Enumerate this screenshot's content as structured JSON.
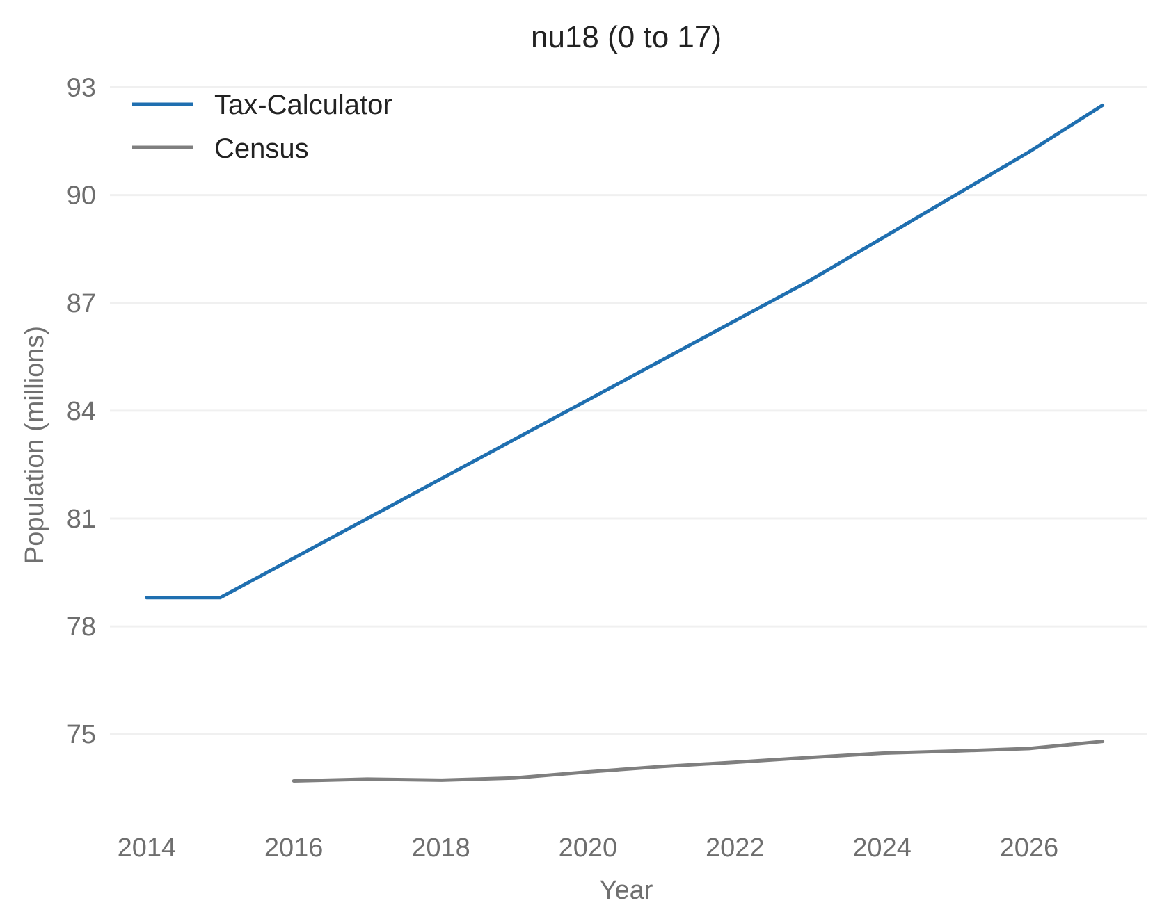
{
  "chart_data": {
    "type": "line",
    "title": "nu18 (0 to 17)",
    "xlabel": "Year",
    "ylabel": "Population (millions)",
    "xlim": [
      2013.5,
      2027.6
    ],
    "ylim": [
      72.8,
      93.3
    ],
    "xticks": [
      2014,
      2016,
      2018,
      2020,
      2022,
      2024,
      2026
    ],
    "xtick_labels": [
      "2014",
      "2016",
      "2018",
      "2020",
      "2022",
      "2024",
      "2026"
    ],
    "yticks": [
      75,
      78,
      81,
      84,
      87,
      90,
      93
    ],
    "ytick_labels": [
      "75",
      "78",
      "81",
      "84",
      "87",
      "90",
      "93"
    ],
    "grid": true,
    "legend_position": "top-left",
    "series": [
      {
        "name": "Tax-Calculator",
        "color": "#1f6fb0",
        "x": [
          2014,
          2015,
          2016,
          2017,
          2018,
          2019,
          2020,
          2021,
          2022,
          2023,
          2024,
          2025,
          2026,
          2027
        ],
        "y": [
          78.8,
          78.8,
          79.9,
          81.0,
          82.1,
          83.2,
          84.3,
          85.4,
          86.5,
          87.6,
          88.8,
          90.0,
          91.2,
          92.5
        ]
      },
      {
        "name": "Census",
        "color": "#7f7f7f",
        "x": [
          2016,
          2017,
          2018,
          2019,
          2020,
          2021,
          2022,
          2023,
          2024,
          2025,
          2026,
          2027
        ],
        "y": [
          73.7,
          73.75,
          73.72,
          73.78,
          73.95,
          74.1,
          74.22,
          74.35,
          74.47,
          74.53,
          74.6,
          74.8
        ]
      }
    ]
  }
}
